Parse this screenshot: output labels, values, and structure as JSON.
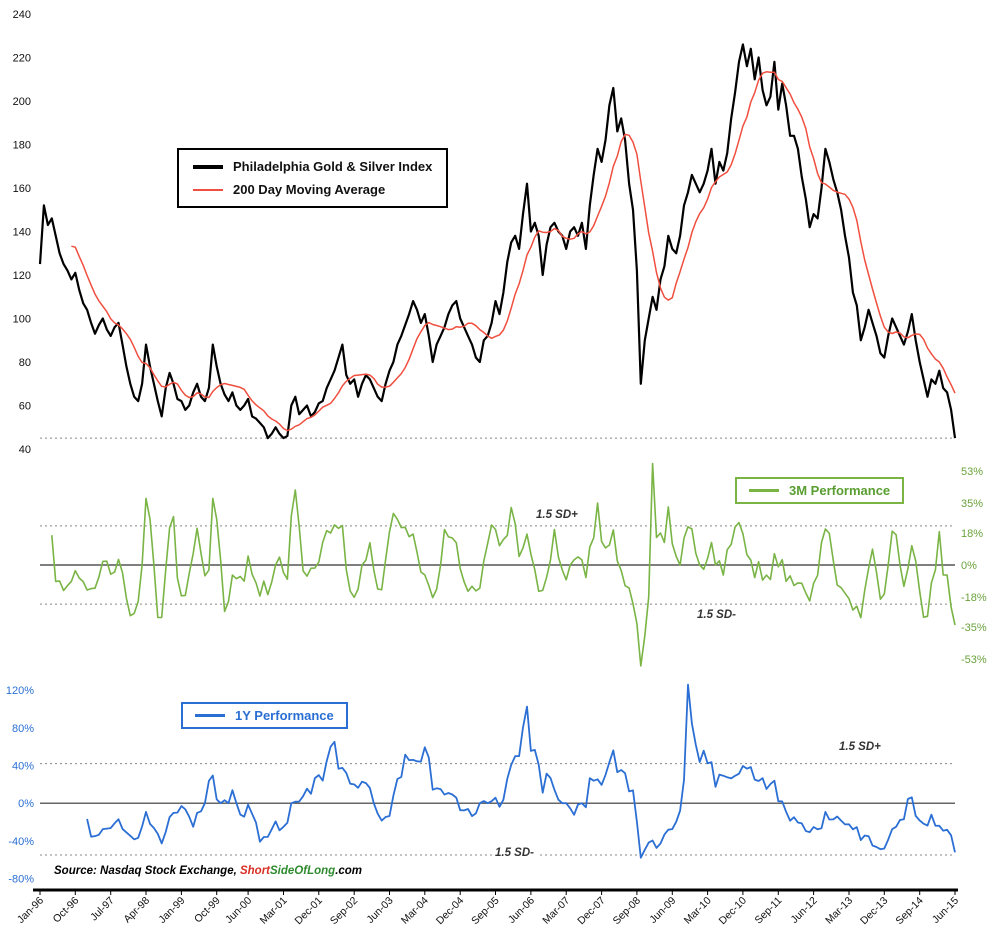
{
  "page": {
    "background": "#ffffff"
  },
  "colors": {
    "index_line": "#000000",
    "ma_line": "#f04f3f",
    "perf3m_line": "#79b445",
    "perf3m_axis": "#6aa23c",
    "perf1y_line": "#2b6fd4",
    "perf1y_axis": "#2b6fd4",
    "grid_dotted": "#888888",
    "zero_line": "#333333",
    "axis_line": "#000000"
  },
  "source": {
    "prefix": "Source: Nasdaq Stock Exchange, ",
    "brand": [
      {
        "text": "Short",
        "color": "#d93025"
      },
      {
        "text": "SideOf",
        "color": "#2e8b2e"
      },
      {
        "text": "Long",
        "color": "#2e8b2e"
      },
      {
        "text": ".com",
        "color": "#000000"
      }
    ]
  },
  "x_axis": {
    "ticks": [
      {
        "label": "Jan-96",
        "month_index": 0
      },
      {
        "label": "Oct-96",
        "month_index": 9
      },
      {
        "label": "Jul-97",
        "month_index": 18
      },
      {
        "label": "Apr-98",
        "month_index": 27
      },
      {
        "label": "Jan-99",
        "month_index": 36
      },
      {
        "label": "Oct-99",
        "month_index": 45
      },
      {
        "label": "Jun-00",
        "month_index": 53
      },
      {
        "label": "Mar-01",
        "month_index": 62
      },
      {
        "label": "Dec-01",
        "month_index": 71
      },
      {
        "label": "Sep-02",
        "month_index": 80
      },
      {
        "label": "Jun-03",
        "month_index": 89
      },
      {
        "label": "Mar-04",
        "month_index": 98
      },
      {
        "label": "Dec-04",
        "month_index": 107
      },
      {
        "label": "Sep-05",
        "month_index": 116
      },
      {
        "label": "Jun-06",
        "month_index": 125
      },
      {
        "label": "Mar-07",
        "month_index": 134
      },
      {
        "label": "Dec-07",
        "month_index": 143
      },
      {
        "label": "Sep-08",
        "month_index": 152
      },
      {
        "label": "Jun-09",
        "month_index": 161
      },
      {
        "label": "Mar-10",
        "month_index": 170
      },
      {
        "label": "Dec-10",
        "month_index": 179
      },
      {
        "label": "Sep-11",
        "month_index": 188
      },
      {
        "label": "Jun-12",
        "month_index": 197
      },
      {
        "label": "Mar-13",
        "month_index": 206
      },
      {
        "label": "Dec-13",
        "month_index": 215
      },
      {
        "label": "Sep-14",
        "month_index": 224
      },
      {
        "label": "Jun-15",
        "month_index": 233
      }
    ],
    "range_label": "Jan-96 to Jun-15, monthly samples of daily data"
  },
  "chart_data": [
    {
      "type": "line",
      "panel": "price",
      "title": "Philadelphia Gold & Silver Index",
      "ylim": [
        40,
        240
      ],
      "yticks": [
        240,
        220,
        200,
        180,
        160,
        140,
        120,
        100,
        80,
        60,
        40
      ],
      "ref_line": {
        "value": 45,
        "style": "dotted"
      },
      "series": [
        {
          "name": "Philadelphia Gold & Silver Index",
          "color": "#000000",
          "values": [
            125,
            152,
            143,
            146,
            138,
            130,
            125,
            122,
            118,
            121,
            113,
            107,
            104,
            98,
            93,
            97,
            100,
            95,
            92,
            96,
            98,
            88,
            78,
            70,
            64,
            62,
            70,
            88,
            78,
            70,
            62,
            55,
            68,
            75,
            70,
            63,
            62,
            58,
            60,
            66,
            70,
            64,
            62,
            68,
            88,
            78,
            70,
            65,
            62,
            66,
            60,
            58,
            60,
            63,
            55,
            54,
            52,
            50,
            45,
            47,
            50,
            47,
            45,
            46,
            60,
            64,
            56,
            58,
            60,
            55,
            57,
            61,
            62,
            68,
            72,
            76,
            82,
            88,
            74,
            70,
            72,
            64,
            70,
            74,
            72,
            68,
            64,
            62,
            70,
            76,
            80,
            88,
            92,
            97,
            102,
            108,
            104,
            98,
            102,
            92,
            80,
            88,
            92,
            96,
            102,
            106,
            108,
            100,
            96,
            92,
            88,
            82,
            80,
            90,
            92,
            98,
            108,
            102,
            112,
            126,
            135,
            138,
            132,
            148,
            162,
            140,
            144,
            138,
            120,
            134,
            142,
            144,
            140,
            138,
            132,
            140,
            142,
            138,
            144,
            132,
            152,
            166,
            178,
            172,
            182,
            198,
            206,
            186,
            192,
            182,
            162,
            150,
            122,
            70,
            90,
            100,
            110,
            104,
            118,
            124,
            138,
            132,
            130,
            138,
            152,
            158,
            166,
            162,
            158,
            162,
            168,
            178,
            162,
            172,
            168,
            176,
            192,
            204,
            218,
            226,
            216,
            224,
            210,
            220,
            205,
            198,
            202,
            218,
            196,
            208,
            198,
            184,
            184,
            178,
            165,
            155,
            142,
            148,
            146,
            160,
            178,
            172,
            164,
            158,
            150,
            138,
            128,
            112,
            106,
            90,
            96,
            104,
            98,
            92,
            84,
            82,
            92,
            100,
            96,
            92,
            88,
            94,
            102,
            90,
            80,
            72,
            64,
            72,
            70,
            76,
            68,
            66,
            58,
            45
          ]
        },
        {
          "name": "200 Day Moving Average",
          "color": "#f04f3f",
          "derived": "rolling mean of index over 9 monthly samples (approx. 200 trading days)"
        }
      ]
    },
    {
      "type": "line",
      "panel": "3m_performance",
      "title": "3M Performance",
      "color": "#79b445",
      "derived": "3-month percent change of the index series",
      "ylim": [
        -58,
        58
      ],
      "ytick_labels": [
        "53%",
        "35%",
        "18%",
        "0%",
        "-18%",
        "-35%",
        "-53%"
      ],
      "ytick_values": [
        53,
        35,
        18,
        0,
        -18,
        -35,
        -53
      ],
      "bands": {
        "upper": 22,
        "lower": -22,
        "upper_label": "1.5 SD+",
        "lower_label": "1.5 SD-"
      }
    },
    {
      "type": "line",
      "panel": "1y_performance",
      "title": "1Y Performance",
      "color": "#2b6fd4",
      "derived": "12-month percent change of the index series",
      "ylim": [
        -90,
        135
      ],
      "ytick_labels": [
        "120%",
        "80%",
        "40%",
        "0%",
        "-40%",
        "-80%"
      ],
      "ytick_values": [
        120,
        80,
        40,
        0,
        -40,
        -80
      ],
      "bands": {
        "upper": 42,
        "lower": -55,
        "upper_label": "1.5 SD+",
        "lower_label": "1.5 SD-"
      }
    }
  ]
}
